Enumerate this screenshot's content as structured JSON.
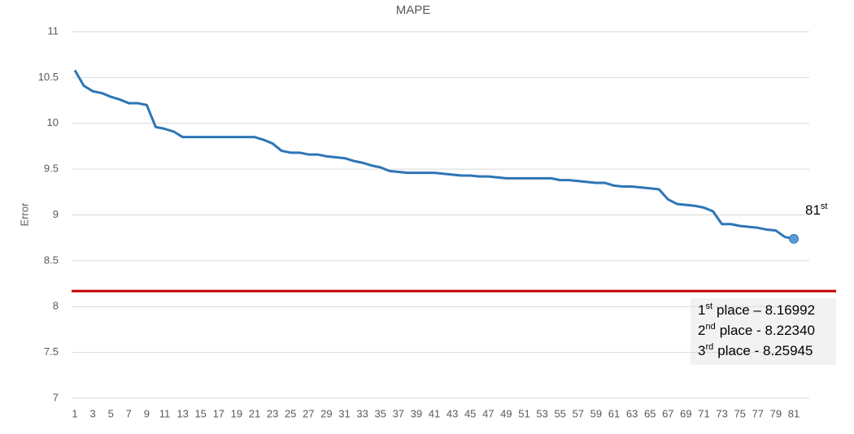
{
  "chart_data": {
    "type": "line",
    "title": "MAPE",
    "y_label": "Error",
    "categories": [
      1,
      null,
      3,
      null,
      5,
      null,
      7,
      null,
      9,
      null,
      11,
      null,
      13,
      null,
      15,
      null,
      17,
      null,
      19,
      null,
      21,
      null,
      23,
      null,
      25,
      null,
      27,
      null,
      29,
      null,
      31,
      null,
      33,
      null,
      35,
      null,
      37,
      null,
      39,
      null,
      41,
      null,
      43,
      null,
      45,
      null,
      47,
      null,
      49,
      null,
      51,
      null,
      53,
      null,
      55,
      null,
      57,
      null,
      59,
      null,
      61,
      null,
      63,
      null,
      65,
      null,
      67,
      null,
      69,
      null,
      71,
      null,
      73,
      null,
      75,
      null,
      77,
      null,
      79,
      null,
      81
    ],
    "series": [
      {
        "color": "#2e75b6",
        "values": [
          10.58,
          10.41,
          10.35,
          10.33,
          10.29,
          10.26,
          10.22,
          10.22,
          10.2,
          9.96,
          9.94,
          9.91,
          9.85,
          9.85,
          9.85,
          9.85,
          9.85,
          9.85,
          9.85,
          9.85,
          9.85,
          9.82,
          9.78,
          9.7,
          9.68,
          9.68,
          9.66,
          9.66,
          9.64,
          9.63,
          9.62,
          9.59,
          9.57,
          9.54,
          9.52,
          9.48,
          9.47,
          9.46,
          9.46,
          9.46,
          9.46,
          9.45,
          9.44,
          9.43,
          9.43,
          9.42,
          9.42,
          9.41,
          9.4,
          9.4,
          9.4,
          9.4,
          9.4,
          9.4,
          9.38,
          9.38,
          9.37,
          9.36,
          9.35,
          9.35,
          9.32,
          9.31,
          9.31,
          9.3,
          9.29,
          9.28,
          9.17,
          9.12,
          9.11,
          9.1,
          9.08,
          9.04,
          8.9,
          8.9,
          8.88,
          8.87,
          8.86,
          8.84,
          8.83,
          8.76,
          8.74
        ]
      }
    ],
    "ylim": [
      7,
      11
    ],
    "yticks": [
      7,
      7.5,
      8,
      8.5,
      9,
      9.5,
      10,
      10.5,
      11
    ],
    "grid": true,
    "reference_line": {
      "value": 8.16992,
      "color": "#c00000"
    },
    "point_annotation": {
      "text": "81",
      "superscript": "st"
    },
    "legend_box": [
      {
        "ordinal": "1",
        "suffix": "st",
        "text": "place – 8.16992"
      },
      {
        "ordinal": "2",
        "suffix": "nd",
        "text": "place - 8.22340"
      },
      {
        "ordinal": "3",
        "suffix": "rd",
        "text": "place - 8.25945"
      }
    ]
  }
}
